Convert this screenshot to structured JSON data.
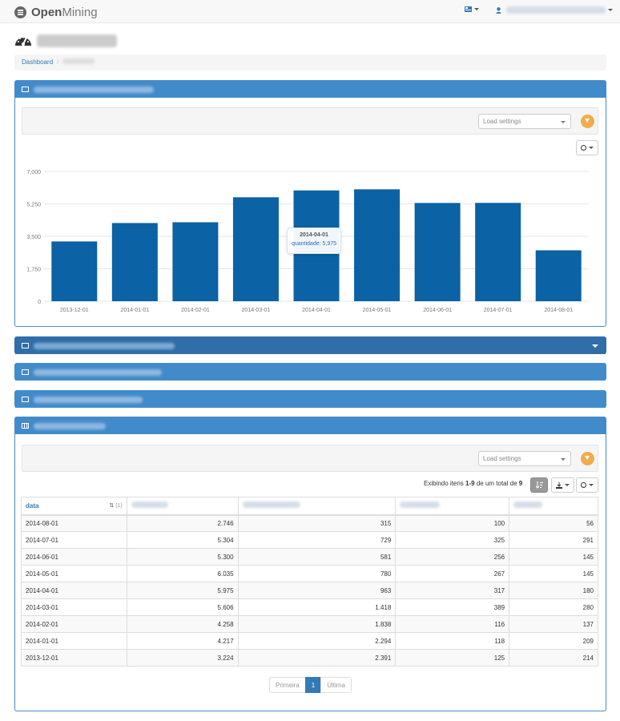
{
  "app": {
    "brand_bold": "Open",
    "brand_light": "Mining"
  },
  "breadcrumb": {
    "home": "Dashboard"
  },
  "chart_panel": {
    "load_settings_placeholder": "Load settings",
    "tooltip": {
      "title": "2014-04-01",
      "label": "quantidade: 5,975"
    }
  },
  "chart_data": {
    "type": "bar",
    "categories": [
      "2013-12-01",
      "2014-01-01",
      "2014-02-01",
      "2014-03-01",
      "2014-04-01",
      "2014-05-01",
      "2014-06-01",
      "2014-07-01",
      "2014-08-01"
    ],
    "series": [
      {
        "name": "quantidade",
        "values": [
          3224,
          4217,
          4258,
          5606,
          5975,
          6035,
          5300,
          5304,
          2746
        ]
      }
    ],
    "y_ticks": [
      "0",
      "1,750",
      "3,500",
      "5,250",
      "7,000"
    ],
    "ylim": [
      0,
      7000
    ],
    "grid": true,
    "bar_color": "#0b62a4"
  },
  "table_panel": {
    "load_settings_placeholder": "Load settings",
    "info": {
      "prefix": "Exibindo itens ",
      "range": "1-9",
      "middle": " de um total de ",
      "total": "9"
    },
    "columns": [
      {
        "label": "data",
        "sort_marker": "(1)"
      }
    ],
    "rows": [
      [
        "2014-08-01",
        "2.746",
        "315",
        "100",
        "56"
      ],
      [
        "2014-07-01",
        "5.304",
        "729",
        "325",
        "291"
      ],
      [
        "2014-06-01",
        "5.300",
        "581",
        "256",
        "145"
      ],
      [
        "2014-05-01",
        "6.035",
        "780",
        "267",
        "145"
      ],
      [
        "2014-04-01",
        "5.975",
        "963",
        "317",
        "180"
      ],
      [
        "2014-03-01",
        "5.606",
        "1.418",
        "389",
        "280"
      ],
      [
        "2014-02-01",
        "4.258",
        "1.838",
        "116",
        "137"
      ],
      [
        "2014-01-01",
        "4.217",
        "2.294",
        "118",
        "209"
      ],
      [
        "2013-12-01",
        "3.224",
        "2.391",
        "125",
        "214"
      ]
    ],
    "pagination": {
      "first": "Primeira",
      "current": "1",
      "last": "Última"
    }
  },
  "colors": {
    "panel_header": "#428bca",
    "accent": "#f0ad4e",
    "link": "#337ab7"
  }
}
